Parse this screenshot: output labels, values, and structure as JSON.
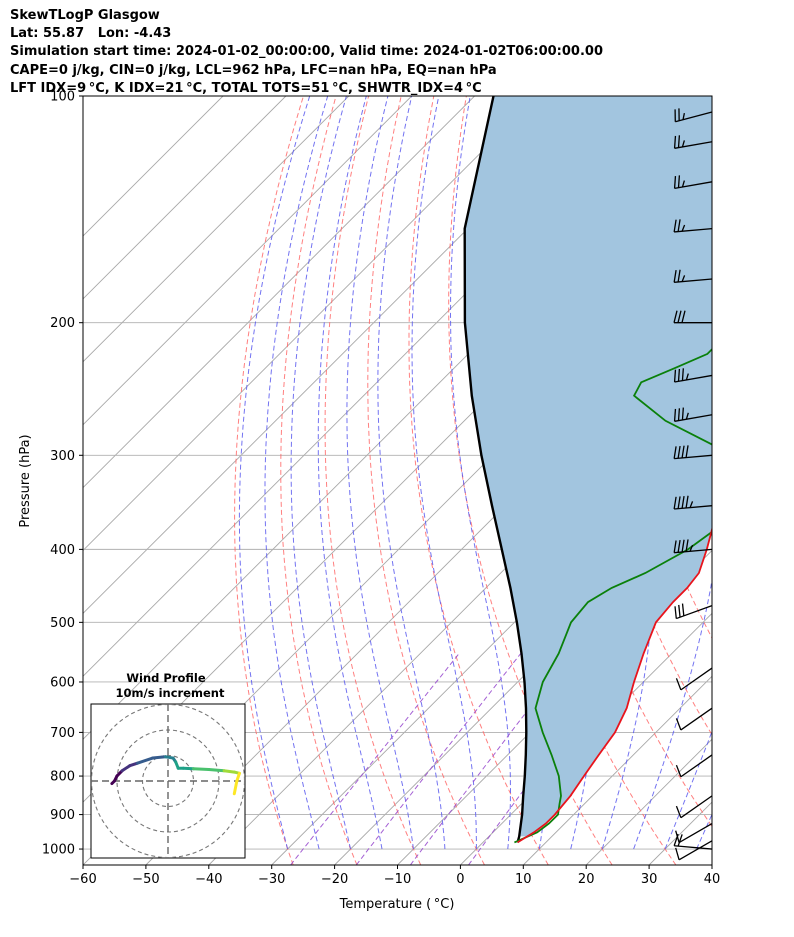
{
  "header": {
    "line1": "SkewTLogP Glasgow",
    "line2": "Lat: 55.87   Lon: -4.43",
    "line3": "Simulation start time: 2024-01-02_00:00:00, Valid time: 2024-01-02T06:00:00.00",
    "line4": "CAPE=0 j/kg, CIN=0 j/kg, LCL=962 hPa, LFC=nan hPa, EQ=nan hPa",
    "line5": "LFT IDX=9 °C, K IDX=21 °C, TOTAL TOTS=51 °C, SHWTR_IDX=4 °C"
  },
  "axes": {
    "xlabel": "Temperature ( °C)",
    "ylabel": "Pressure (hPa)",
    "xticks": [
      "−60",
      "−50",
      "−40",
      "−30",
      "−20",
      "−10",
      "0",
      "10",
      "20",
      "30",
      "40"
    ],
    "yticks": [
      "100",
      "200",
      "300",
      "400",
      "500",
      "600",
      "700",
      "800",
      "900",
      "1000"
    ]
  },
  "inset": {
    "title_line1": "Wind Profile",
    "title_line2": "10m/s increment"
  },
  "colors": {
    "temperature": "#e8141c",
    "dewpoint": "#0a800a",
    "parcel": "#000000",
    "shade": "#a2c5df",
    "dry_adiabat": "#ff6a6a",
    "moist_adiabat": "#5a5aee",
    "mixing_ratio": "#9a4fcf",
    "isotherm": "#a8a8a8"
  },
  "chart_data": {
    "type": "skewt",
    "xlim": [
      -60,
      40
    ],
    "ylim": [
      1050,
      100
    ],
    "y_scale": "log",
    "grid": true,
    "temperature": {
      "p": [
        980,
        950,
        925,
        900,
        850,
        800,
        750,
        700,
        650,
        600,
        550,
        500,
        470,
        450,
        430,
        400,
        370,
        340,
        310,
        280,
        260,
        240,
        220,
        200,
        180,
        160,
        140,
        125,
        110,
        100
      ],
      "t": [
        5.5,
        6.5,
        7,
        7,
        6.5,
        5.5,
        4.5,
        3.5,
        1.5,
        -1.5,
        -4.5,
        -7.5,
        -8,
        -8,
        -8.5,
        -11,
        -14,
        -16.5,
        -19,
        -21.5,
        -23,
        -24,
        -24,
        -24,
        -24,
        -23.5,
        -23,
        -22,
        -20.5,
        -20.5
      ]
    },
    "dewpoint": {
      "p": [
        980,
        950,
        925,
        900,
        870,
        850,
        800,
        750,
        700,
        650,
        600,
        550,
        500,
        470,
        450,
        430,
        400,
        370,
        340,
        310,
        290,
        270,
        250,
        240,
        230,
        220,
        210,
        200,
        190,
        180,
        170,
        160,
        150,
        140,
        130,
        120,
        110,
        100
      ],
      "td": [
        5,
        7,
        7.5,
        7.5,
        6,
        5,
        1.5,
        -3,
        -8,
        -13,
        -16,
        -18,
        -21,
        -21.5,
        -20,
        -17,
        -14,
        -12.5,
        -14,
        -18,
        -27,
        -38,
        -47,
        -48,
        -45,
        -42,
        -42,
        -42,
        -44,
        -47,
        -50,
        -54,
        -56,
        -58.5,
        -60,
        -61.5,
        -62.5,
        -63.5
      ]
    },
    "parcel": {
      "p": [
        980,
        962,
        900,
        850,
        800,
        750,
        700,
        650,
        600,
        550,
        500,
        450,
        400,
        350,
        300,
        250,
        200,
        150,
        100
      ],
      "t": [
        5.5,
        4.8,
        1.8,
        -1.0,
        -3.9,
        -7.1,
        -10.6,
        -14.5,
        -18.9,
        -23.9,
        -29.6,
        -36.1,
        -43.6,
        -52.1,
        -61.8,
        -72.8,
        -85.5,
        -100.5,
        -117
      ]
    },
    "wind_barbs": [
      {
        "p": 1000,
        "speed_kt": 20,
        "dir_deg": 275
      },
      {
        "p": 975,
        "speed_kt": 12,
        "dir_deg": 240
      },
      {
        "p": 925,
        "speed_kt": 12,
        "dir_deg": 240
      },
      {
        "p": 850,
        "speed_kt": 12,
        "dir_deg": 235
      },
      {
        "p": 750,
        "speed_kt": 12,
        "dir_deg": 235
      },
      {
        "p": 650,
        "speed_kt": 12,
        "dir_deg": 235
      },
      {
        "p": 575,
        "speed_kt": 12,
        "dir_deg": 235
      },
      {
        "p": 475,
        "speed_kt": 30,
        "dir_deg": 250
      },
      {
        "p": 400,
        "speed_kt": 45,
        "dir_deg": 265
      },
      {
        "p": 350,
        "speed_kt": 45,
        "dir_deg": 265
      },
      {
        "p": 300,
        "speed_kt": 40,
        "dir_deg": 265
      },
      {
        "p": 265,
        "speed_kt": 35,
        "dir_deg": 260
      },
      {
        "p": 235,
        "speed_kt": 35,
        "dir_deg": 260
      },
      {
        "p": 200,
        "speed_kt": 30,
        "dir_deg": 270
      },
      {
        "p": 175,
        "speed_kt": 25,
        "dir_deg": 265
      },
      {
        "p": 150,
        "speed_kt": 25,
        "dir_deg": 265
      },
      {
        "p": 130,
        "speed_kt": 25,
        "dir_deg": 260
      },
      {
        "p": 115,
        "speed_kt": 25,
        "dir_deg": 260
      },
      {
        "p": 105,
        "speed_kt": 25,
        "dir_deg": 255
      }
    ],
    "hodograph": {
      "rings_ms": [
        10,
        20,
        30
      ],
      "u_ms": [
        -22,
        -21,
        -20,
        -18,
        -15,
        -12,
        -6,
        -1,
        2,
        3,
        4,
        6,
        10,
        16,
        22,
        26,
        28,
        27,
        26
      ],
      "v_ms": [
        -1,
        0,
        2,
        4,
        6,
        7,
        9,
        9.5,
        9,
        7.5,
        5,
        5,
        4.8,
        4.5,
        4,
        3.5,
        3,
        0,
        -5
      ]
    }
  }
}
